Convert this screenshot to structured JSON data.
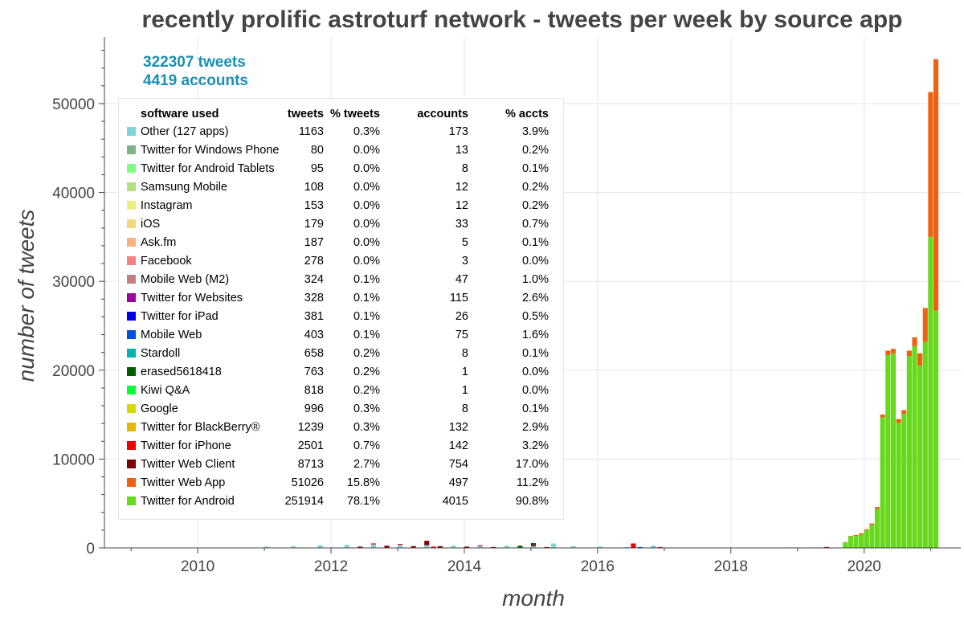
{
  "chart_data": {
    "type": "bar",
    "stacked": true,
    "title": "recently prolific astroturf network - tweets per week by source app",
    "xlabel": "month",
    "ylabel": "number of tweets",
    "xlim": [
      2008.6,
      2021.45
    ],
    "ylim": [
      0,
      57500
    ],
    "xticks": [
      2010,
      2012,
      2014,
      2016,
      2018,
      2020
    ],
    "yticks": [
      0,
      10000,
      20000,
      30000,
      40000,
      50000
    ],
    "grid": true,
    "legend_position": "top-left",
    "summary": {
      "tweets": "322307 tweets",
      "accounts": "4419 accounts"
    },
    "legend_headers": [
      "software used",
      "tweets",
      "% tweets",
      "accounts",
      "% accts"
    ],
    "legend": [
      {
        "name": "Other (127 apps)",
        "tweets": "1163",
        "pct_tweets": "0.3%",
        "accounts": "173",
        "pct_accts": "3.9%",
        "color": "#7fd6d6"
      },
      {
        "name": "Twitter for Windows Phone",
        "tweets": "80",
        "pct_tweets": "0.0%",
        "accounts": "13",
        "pct_accts": "0.2%",
        "color": "#7fb38a"
      },
      {
        "name": "Twitter for Android Tablets",
        "tweets": "95",
        "pct_tweets": "0.0%",
        "accounts": "8",
        "pct_accts": "0.1%",
        "color": "#80ff80"
      },
      {
        "name": "Samsung Mobile",
        "tweets": "108",
        "pct_tweets": "0.0%",
        "accounts": "12",
        "pct_accts": "0.2%",
        "color": "#b3e080"
      },
      {
        "name": "Instagram",
        "tweets": "153",
        "pct_tweets": "0.0%",
        "accounts": "12",
        "pct_accts": "0.2%",
        "color": "#eeee80"
      },
      {
        "name": "iOS",
        "tweets": "179",
        "pct_tweets": "0.0%",
        "accounts": "33",
        "pct_accts": "0.7%",
        "color": "#f2d680"
      },
      {
        "name": "Ask.fm",
        "tweets": "187",
        "pct_tweets": "0.0%",
        "accounts": "5",
        "pct_accts": "0.1%",
        "color": "#f5b380"
      },
      {
        "name": "Facebook",
        "tweets": "278",
        "pct_tweets": "0.0%",
        "accounts": "3",
        "pct_accts": "0.0%",
        "color": "#f58080"
      },
      {
        "name": "Mobile Web (M2)",
        "tweets": "324",
        "pct_tweets": "0.1%",
        "accounts": "47",
        "pct_accts": "1.0%",
        "color": "#c08080"
      },
      {
        "name": "Twitter for Websites",
        "tweets": "328",
        "pct_tweets": "0.1%",
        "accounts": "115",
        "pct_accts": "2.6%",
        "color": "#a000a0"
      },
      {
        "name": "Twitter for iPad",
        "tweets": "381",
        "pct_tweets": "0.1%",
        "accounts": "26",
        "pct_accts": "0.5%",
        "color": "#0000e6"
      },
      {
        "name": "Mobile Web",
        "tweets": "403",
        "pct_tweets": "0.1%",
        "accounts": "75",
        "pct_accts": "1.6%",
        "color": "#0050e0"
      },
      {
        "name": "Stardoll",
        "tweets": "658",
        "pct_tweets": "0.2%",
        "accounts": "8",
        "pct_accts": "0.1%",
        "color": "#00b3b3"
      },
      {
        "name": "erased5618418",
        "tweets": "763",
        "pct_tweets": "0.2%",
        "accounts": "1",
        "pct_accts": "0.0%",
        "color": "#006000"
      },
      {
        "name": "Kiwi Q&A",
        "tweets": "818",
        "pct_tweets": "0.2%",
        "accounts": "1",
        "pct_accts": "0.0%",
        "color": "#00ff33"
      },
      {
        "name": "Google",
        "tweets": "996",
        "pct_tweets": "0.3%",
        "accounts": "8",
        "pct_accts": "0.1%",
        "color": "#d9d900"
      },
      {
        "name": "Twitter for BlackBerry®",
        "tweets": "1239",
        "pct_tweets": "0.3%",
        "accounts": "132",
        "pct_accts": "2.9%",
        "color": "#e6b800"
      },
      {
        "name": "Twitter for iPhone",
        "tweets": "2501",
        "pct_tweets": "0.7%",
        "accounts": "142",
        "pct_accts": "3.2%",
        "color": "#ee0000"
      },
      {
        "name": "Twitter Web Client",
        "tweets": "8713",
        "pct_tweets": "2.7%",
        "accounts": "754",
        "pct_accts": "17.0%",
        "color": "#800000"
      },
      {
        "name": "Twitter Web App",
        "tweets": "51026",
        "pct_tweets": "15.8%",
        "accounts": "497",
        "pct_accts": "11.2%",
        "color": "#f06010"
      },
      {
        "name": "Twitter for Android",
        "tweets": "251914",
        "pct_tweets": "78.1%",
        "accounts": "4015",
        "pct_accts": "90.8%",
        "color": "#66d91a"
      }
    ],
    "series": [
      {
        "name": "Twitter for Android",
        "color": "#66d91a",
        "values": [
          [
            2019.68,
            600
          ],
          [
            2019.76,
            1300
          ],
          [
            2019.84,
            1350
          ],
          [
            2019.92,
            1500
          ],
          [
            2020.0,
            2000
          ],
          [
            2020.08,
            2600
          ],
          [
            2020.16,
            4400
          ],
          [
            2020.24,
            14700
          ],
          [
            2020.32,
            21700
          ],
          [
            2020.4,
            21900
          ],
          [
            2020.48,
            14100
          ],
          [
            2020.56,
            15100
          ],
          [
            2020.64,
            21600
          ],
          [
            2020.72,
            22700
          ],
          [
            2020.8,
            20500
          ],
          [
            2020.88,
            23200
          ],
          [
            2020.96,
            35000
          ],
          [
            2021.04,
            26700
          ]
        ]
      },
      {
        "name": "Twitter Web App",
        "color": "#f06010",
        "values": [
          [
            2019.68,
            50
          ],
          [
            2019.76,
            50
          ],
          [
            2019.84,
            100
          ],
          [
            2019.92,
            150
          ],
          [
            2020.0,
            100
          ],
          [
            2020.08,
            150
          ],
          [
            2020.16,
            200
          ],
          [
            2020.24,
            300
          ],
          [
            2020.32,
            500
          ],
          [
            2020.4,
            500
          ],
          [
            2020.48,
            400
          ],
          [
            2020.56,
            400
          ],
          [
            2020.64,
            600
          ],
          [
            2020.72,
            1000
          ],
          [
            2020.8,
            1400
          ],
          [
            2020.88,
            3800
          ],
          [
            2020.96,
            16300
          ],
          [
            2021.04,
            28300
          ]
        ]
      },
      {
        "name": "Other (127 apps)",
        "color": "#7fd6d6",
        "values": [
          [
            2011.0,
            150
          ],
          [
            2011.4,
            200
          ],
          [
            2011.8,
            300
          ],
          [
            2012.2,
            350
          ],
          [
            2012.6,
            400
          ],
          [
            2013.0,
            350
          ],
          [
            2013.4,
            300
          ],
          [
            2013.8,
            250
          ],
          [
            2014.2,
            200
          ],
          [
            2014.6,
            250
          ],
          [
            2015.0,
            200
          ],
          [
            2015.3,
            500
          ],
          [
            2015.6,
            200
          ],
          [
            2016.0,
            150
          ],
          [
            2016.4,
            100
          ],
          [
            2016.8,
            150
          ],
          [
            2017.2,
            50
          ]
        ]
      },
      {
        "name": "Twitter Web Client",
        "color": "#800000",
        "values": [
          [
            2012.4,
            150
          ],
          [
            2012.8,
            250
          ],
          [
            2013.2,
            200
          ],
          [
            2013.4,
            500
          ],
          [
            2013.6,
            200
          ],
          [
            2014.0,
            150
          ],
          [
            2014.4,
            100
          ],
          [
            2015.0,
            200
          ],
          [
            2015.2,
            100
          ],
          [
            2018.8,
            50
          ],
          [
            2019.2,
            50
          ],
          [
            2019.4,
            100
          ]
        ]
      },
      {
        "name": "Twitter for iPhone",
        "color": "#ee0000",
        "values": [
          [
            2012.6,
            100
          ],
          [
            2013.0,
            100
          ],
          [
            2013.5,
            150
          ],
          [
            2014.2,
            100
          ],
          [
            2016.5,
            500
          ],
          [
            2016.9,
            100
          ],
          [
            2019.0,
            50
          ],
          [
            2019.3,
            50
          ]
        ]
      },
      {
        "name": "Mobile Web",
        "color": "#0050e0",
        "values": [
          [
            2016.6,
            100
          ],
          [
            2016.8,
            50
          ]
        ]
      },
      {
        "name": "erased5618418",
        "color": "#006000",
        "values": [
          [
            2014.8,
            250
          ],
          [
            2015.0,
            150
          ]
        ]
      }
    ]
  }
}
